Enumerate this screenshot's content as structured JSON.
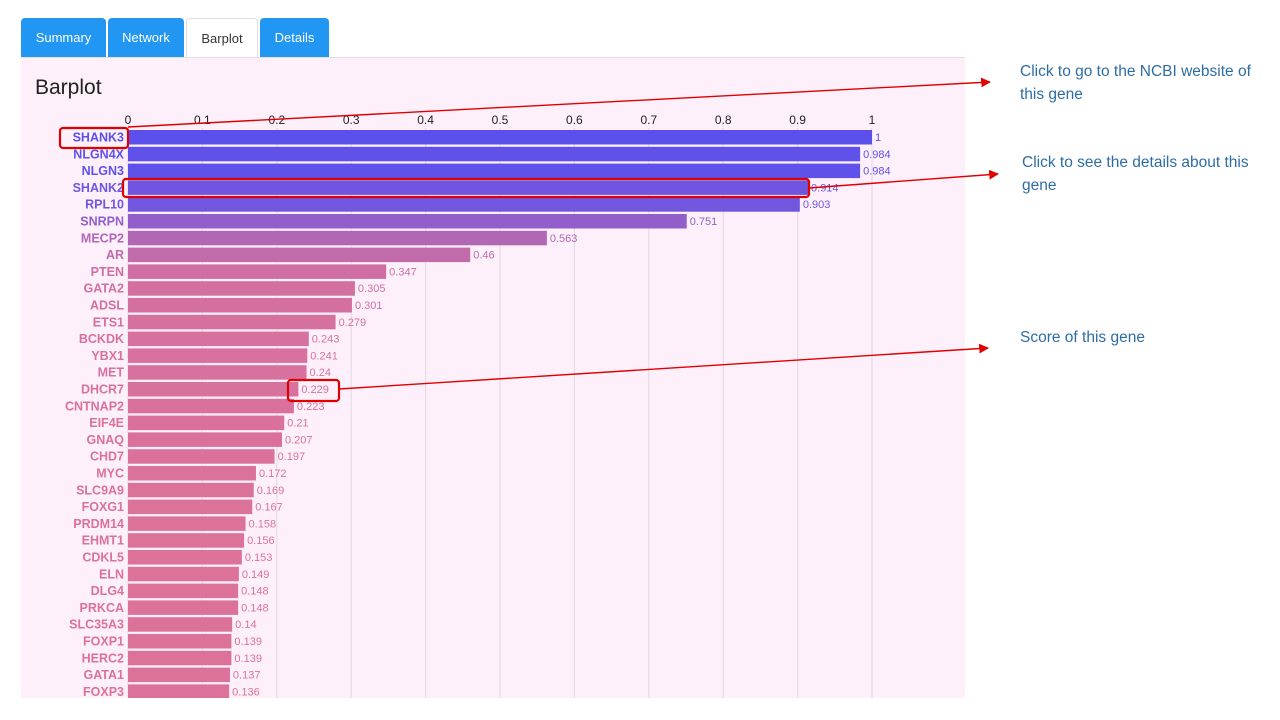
{
  "tabs": [
    {
      "label": "Summary",
      "active": false
    },
    {
      "label": "Network",
      "active": false
    },
    {
      "label": "Barplot",
      "active": true
    },
    {
      "label": "Details",
      "active": false
    }
  ],
  "panel": {
    "title": "Barplot"
  },
  "annotations": {
    "ncbi": "Click to go to the NCBI website of this gene",
    "details": "Click to see the details about this gene",
    "score": "Score of this gene"
  },
  "colors": {
    "bar_top": "#5b50ec",
    "bar_bottom": "#dc729a",
    "annotation_arrow": "#e00000"
  },
  "chart_data": {
    "type": "bar",
    "orientation": "horizontal",
    "xlim": [
      0,
      1
    ],
    "ticks": [
      "0",
      "0.1",
      "0.2",
      "0.3",
      "0.4",
      "0.5",
      "0.6",
      "0.7",
      "0.8",
      "0.9",
      "1"
    ],
    "categories": [
      "SHANK3",
      "NLGN4X",
      "NLGN3",
      "SHANK2",
      "RPL10",
      "SNRPN",
      "MECP2",
      "AR",
      "PTEN",
      "GATA2",
      "ADSL",
      "ETS1",
      "BCKDK",
      "YBX1",
      "MET",
      "DHCR7",
      "CNTNAP2",
      "EIF4E",
      "GNAQ",
      "CHD7",
      "MYC",
      "SLC9A9",
      "FOXG1",
      "PRDM14",
      "EHMT1",
      "CDKL5",
      "ELN",
      "DLG4",
      "PRKCA",
      "SLC35A3",
      "FOXP1",
      "HERC2",
      "GATA1",
      "FOXP3"
    ],
    "values": [
      1,
      0.984,
      0.984,
      0.914,
      0.903,
      0.751,
      0.563,
      0.46,
      0.347,
      0.305,
      0.301,
      0.279,
      0.243,
      0.241,
      0.24,
      0.229,
      0.223,
      0.21,
      0.207,
      0.197,
      0.172,
      0.169,
      0.167,
      0.158,
      0.156,
      0.153,
      0.149,
      0.148,
      0.148,
      0.14,
      0.139,
      0.139,
      0.137,
      0.136
    ],
    "value_labels": [
      "1",
      "0.984",
      "0.984",
      "0.914",
      "0.903",
      "0.751",
      "0.563",
      "0.46",
      "0.347",
      "0.305",
      "0.301",
      "0.279",
      "0.243",
      "0.241",
      "0.24",
      "0.229",
      "0.223",
      "0.21",
      "0.207",
      "0.197",
      "0.172",
      "0.169",
      "0.167",
      "0.158",
      "0.156",
      "0.153",
      "0.149",
      "0.148",
      "0.148",
      "0.14",
      "0.139",
      "0.139",
      "0.137",
      "0.136"
    ],
    "grid": true,
    "highlighted": [
      "SHANK3",
      "SHANK2",
      "DHCR7"
    ]
  }
}
